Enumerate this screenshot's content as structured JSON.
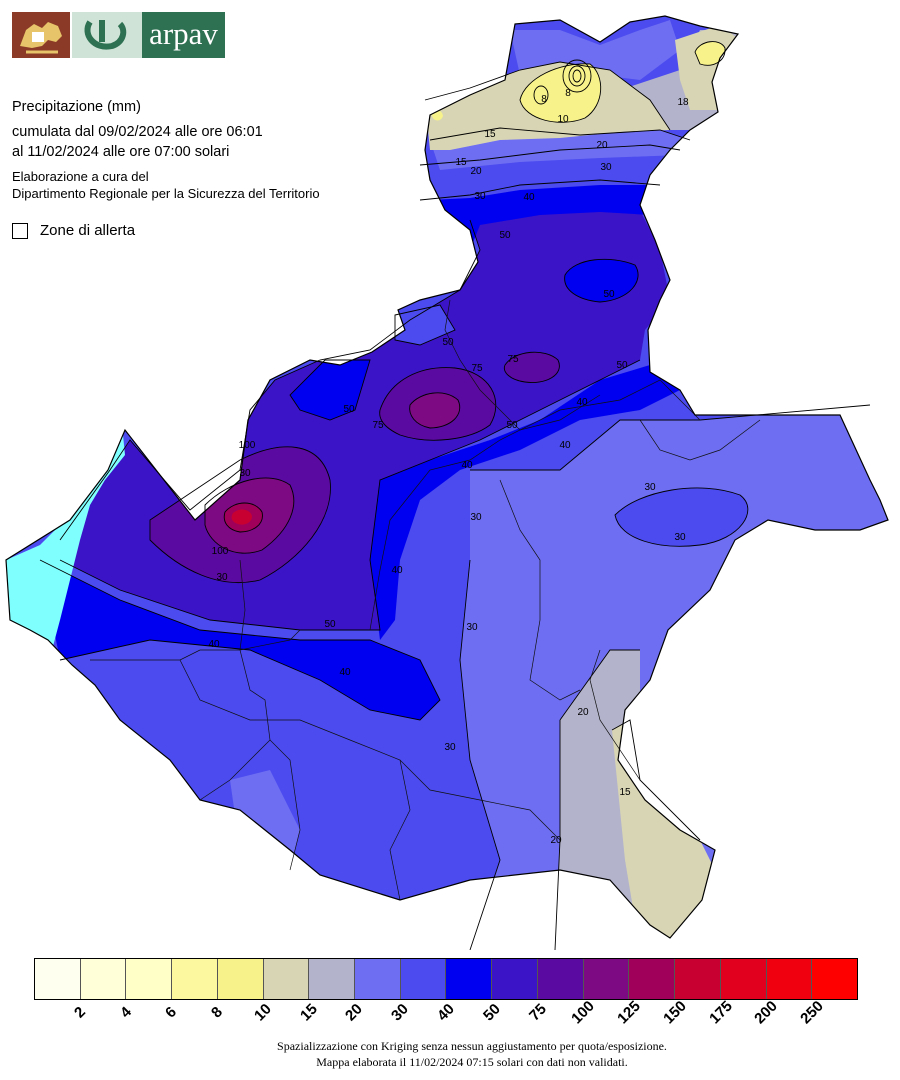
{
  "header": {
    "logo_text": "arpav"
  },
  "info": {
    "title": "Precipitazione (mm)",
    "period_line1": "cumulata dal 09/02/2024 alle ore 06:01",
    "period_line2": "al 11/02/2024 alle ore 07:00 solari",
    "credit_line1": "Elaborazione a cura del",
    "credit_line2": "Dipartimento Regionale per la Sicurezza del Territorio"
  },
  "zone_legend": {
    "label": "Zone di allerta"
  },
  "colorbar": {
    "colors": [
      "#fffff0",
      "#ffffd8",
      "#ffffc8",
      "#fcf8a0",
      "#f7f38a",
      "#d8d5b4",
      "#b3b3cc",
      "#6e6ef2",
      "#4b4bf0",
      "#0000f0",
      "#3c14c8",
      "#5a0aa0",
      "#7d0a82",
      "#a0005a",
      "#c80032",
      "#e1001e",
      "#f0000f",
      "#ff0000"
    ],
    "tick_labels": [
      "2",
      "4",
      "6",
      "8",
      "10",
      "15",
      "20",
      "30",
      "40",
      "50",
      "75",
      "100",
      "125",
      "150",
      "175",
      "200",
      "250"
    ]
  },
  "contour_labels": [
    "8",
    "8",
    "10",
    "15",
    "15",
    "18",
    "20",
    "20",
    "30",
    "30",
    "40",
    "50",
    "50",
    "50",
    "50",
    "50",
    "50",
    "75",
    "75",
    "75",
    "100",
    "100",
    "30",
    "30",
    "30",
    "30",
    "30",
    "40",
    "40",
    "40",
    "40",
    "40",
    "40",
    "20",
    "20",
    "15",
    "50",
    "30",
    "30"
  ],
  "footer": {
    "line1": "Spazializzazione con Kriging senza nessun aggiustamento per quota/esposizione.",
    "line2": "Mappa elaborata il 11/02/2024 07:15 solari con dati non validati."
  }
}
